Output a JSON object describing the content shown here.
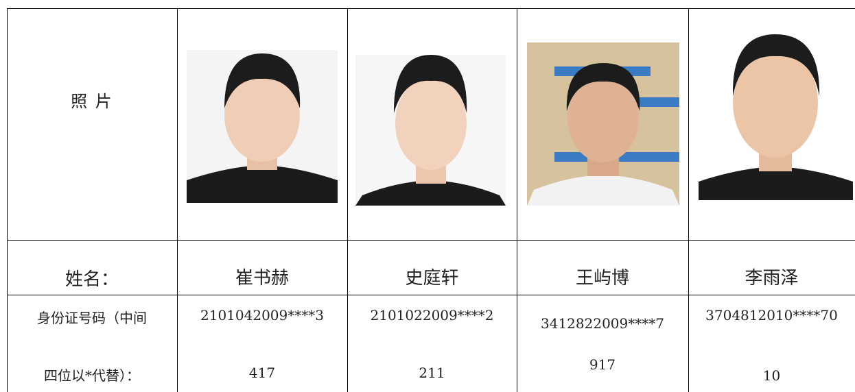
{
  "table": {
    "photo_label": "照 片",
    "name_label": "姓名：",
    "id_label_lines": [
      "身份证号码（中间",
      "四位以*代替）："
    ],
    "students": [
      {
        "name": "崔书赫",
        "id_lines": [
          "2101042009****3",
          "417"
        ]
      },
      {
        "name": "史庭轩",
        "id_lines": [
          "2101022009****2",
          "211"
        ]
      },
      {
        "name": "王屿博",
        "id_lines": [
          "3412822009****7",
          "917"
        ]
      },
      {
        "name": "李雨泽",
        "id_lines": [
          "3704812010****70",
          "10"
        ]
      }
    ]
  }
}
